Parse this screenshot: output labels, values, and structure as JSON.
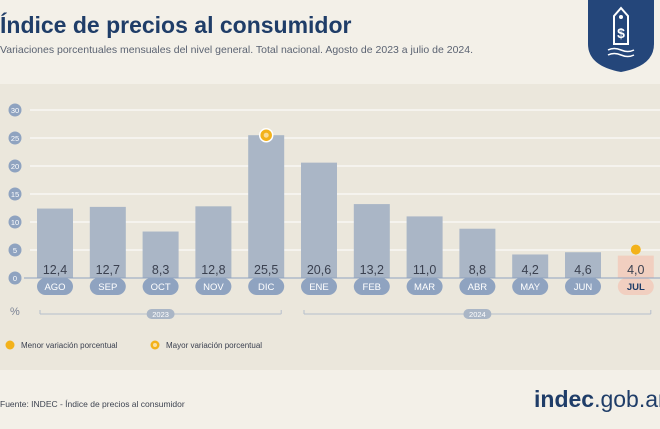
{
  "header": {
    "title": "Índice de precios al consumidor",
    "subtitle": "Variaciones porcentuales mensuales del nivel general. Total nacional. Agosto de 2023 a julio de 2024."
  },
  "badge": {
    "icon": "price-tag-dollar-icon",
    "color": "#24467a"
  },
  "chart_data": {
    "type": "bar",
    "categories": [
      "AGO",
      "SEP",
      "OCT",
      "NOV",
      "DIC",
      "ENE",
      "FEB",
      "MAR",
      "ABR",
      "MAY",
      "JUN",
      "JUL"
    ],
    "values": [
      12.4,
      12.7,
      8.3,
      12.8,
      25.5,
      20.6,
      13.2,
      11.0,
      8.8,
      4.2,
      4.6,
      4.0
    ],
    "value_labels": [
      "12,4",
      "12,7",
      "8,3",
      "12,8",
      "25,5",
      "20,6",
      "13,2",
      "11,0",
      "8,8",
      "4,2",
      "4,6",
      "4,0"
    ],
    "highlight_category": "JUL",
    "ylim": [
      0,
      30
    ],
    "yticks": [
      0,
      5,
      10,
      15,
      20,
      25,
      30
    ],
    "ylabel": "%",
    "year_groups": [
      {
        "label": "2023",
        "categories": [
          "AGO",
          "SEP",
          "OCT",
          "NOV",
          "DIC"
        ]
      },
      {
        "label": "2024",
        "categories": [
          "ENE",
          "FEB",
          "MAR",
          "ABR",
          "MAY",
          "JUN",
          "JUL"
        ]
      }
    ],
    "markers": [
      {
        "category": "DIC",
        "value": 25.5,
        "kind": "max"
      },
      {
        "category": "JUL",
        "value": 4.0,
        "kind": "min"
      }
    ],
    "legend": [
      {
        "label": "Menor variación porcentual",
        "kind": "min"
      },
      {
        "label": "Mayor variación porcentual",
        "kind": "max"
      }
    ],
    "legend_position": "bottom-left",
    "grid": true,
    "colors": {
      "bar": "#aab6c6",
      "bar_highlight": "#f1cfc0",
      "marker": "#f3b21a",
      "axis": "#8fa3c0",
      "grid": "#ffffff"
    }
  },
  "footer": {
    "source": "Fuente: INDEC - Índice de precios al consumidor",
    "brand_main": "indec",
    "brand_suffix": ".gob.ar"
  }
}
